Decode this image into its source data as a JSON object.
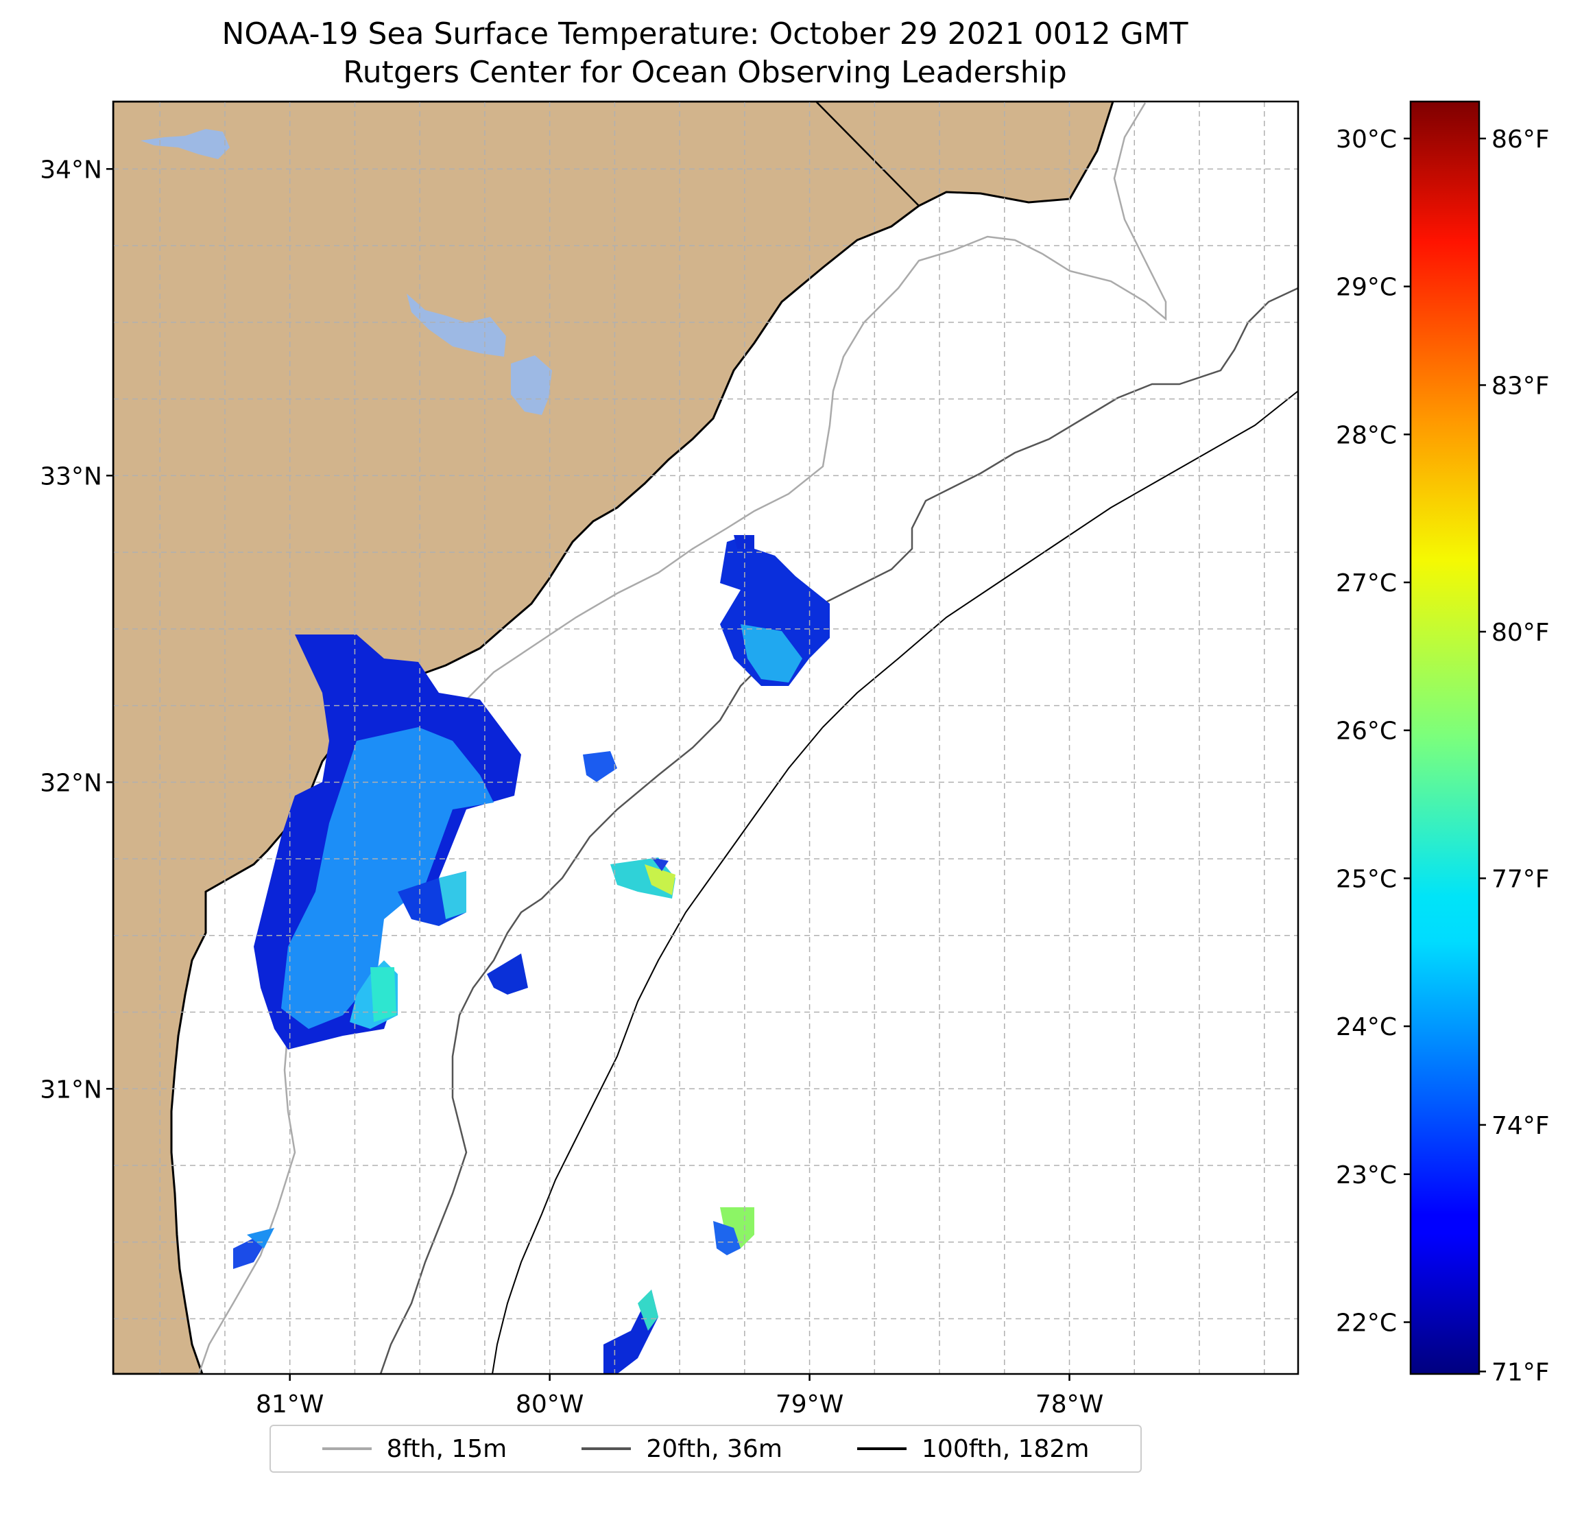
{
  "title": {
    "line1": "NOAA-19 Sea Surface Temperature: October 29 2021 0012 GMT",
    "line2": "Rutgers Center for Ocean Observing Leadership"
  },
  "map": {
    "lon_range": [
      -81.68,
      -77.12
    ],
    "lat_range": [
      30.07,
      34.22
    ],
    "lat_ticks": [
      {
        "value": 34,
        "label": "34°N"
      },
      {
        "value": 33,
        "label": "33°N"
      },
      {
        "value": 32,
        "label": "32°N"
      },
      {
        "value": 31,
        "label": "31°N"
      }
    ],
    "lon_ticks": [
      {
        "value": -81,
        "label": "81°W"
      },
      {
        "value": -80,
        "label": "80°W"
      },
      {
        "value": -79,
        "label": "79°W"
      },
      {
        "value": -78,
        "label": "78°W"
      }
    ],
    "gridlines": "dashed, every 0.25°",
    "colors": {
      "land": "#d2b48c",
      "lakes": "#9db9e4",
      "ocean": "#ffffff",
      "coastline": "#000000",
      "grid": "#b0b0b0"
    }
  },
  "colorbar": {
    "colormap": "jet",
    "celsius_range": [
      21.65,
      30.25
    ],
    "celsius_ticks": [
      {
        "value": 30,
        "label": "30°C"
      },
      {
        "value": 29,
        "label": "29°C"
      },
      {
        "value": 28,
        "label": "28°C"
      },
      {
        "value": 27,
        "label": "27°C"
      },
      {
        "value": 26,
        "label": "26°C"
      },
      {
        "value": 25,
        "label": "25°C"
      },
      {
        "value": 24,
        "label": "24°C"
      },
      {
        "value": 23,
        "label": "23°C"
      },
      {
        "value": 22,
        "label": "22°C"
      }
    ],
    "fahrenheit_ticks": [
      {
        "value": 86,
        "label": "86°F"
      },
      {
        "value": 83,
        "label": "83°F"
      },
      {
        "value": 80,
        "label": "80°F"
      },
      {
        "value": 77,
        "label": "77°F"
      },
      {
        "value": 74,
        "label": "74°F"
      },
      {
        "value": 71,
        "label": "71°F"
      }
    ]
  },
  "legend": {
    "items": [
      {
        "label": "8fth, 15m",
        "color": "#aaaaaa"
      },
      {
        "label": "20fth, 36m",
        "color": "#555555"
      },
      {
        "label": "100fth, 182m",
        "color": "#000000"
      }
    ]
  }
}
